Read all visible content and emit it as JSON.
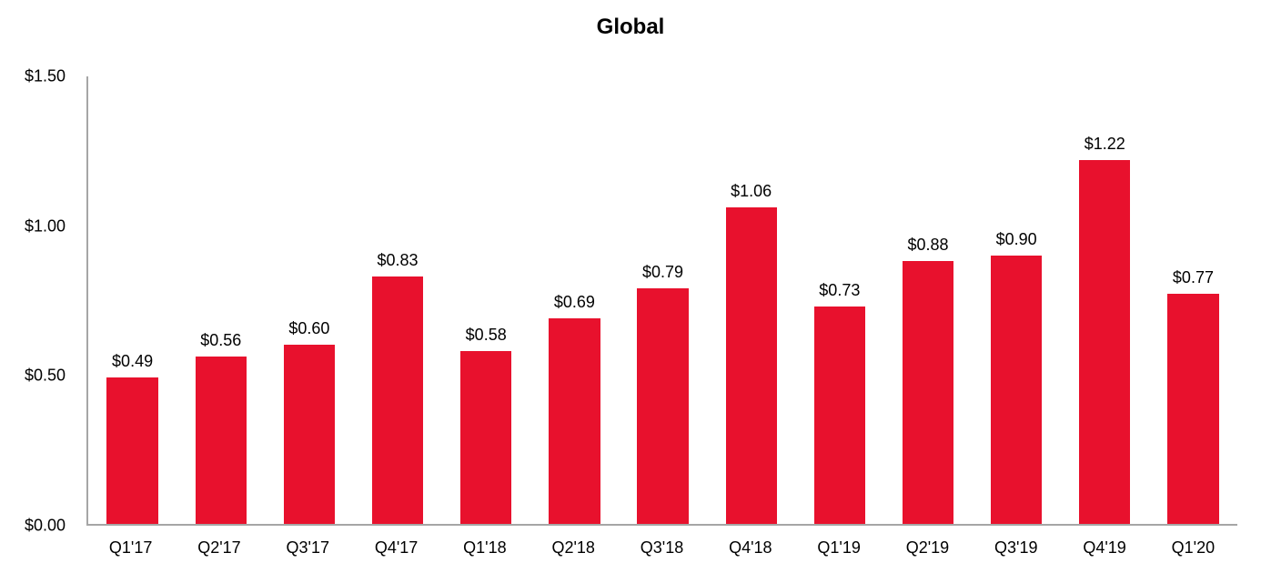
{
  "chart_data": {
    "type": "bar",
    "title": "Global",
    "categories": [
      "Q1'17",
      "Q2'17",
      "Q3'17",
      "Q4'17",
      "Q1'18",
      "Q2'18",
      "Q3'18",
      "Q4'18",
      "Q1'19",
      "Q2'19",
      "Q3'19",
      "Q4'19",
      "Q1'20"
    ],
    "values": [
      0.49,
      0.56,
      0.6,
      0.83,
      0.58,
      0.69,
      0.79,
      1.06,
      0.73,
      0.88,
      0.9,
      1.22,
      0.77
    ],
    "value_labels": [
      "$0.49",
      "$0.56",
      "$0.60",
      "$0.83",
      "$0.58",
      "$0.69",
      "$0.79",
      "$1.06",
      "$0.73",
      "$0.88",
      "$0.90",
      "$1.22",
      "$0.77"
    ],
    "xlabel": "",
    "ylabel": "",
    "ylim": [
      0,
      1.5
    ],
    "ytick_values": [
      0,
      0.5,
      1.0,
      1.5
    ],
    "ytick_labels": [
      "$0.00",
      "$0.50",
      "$1.00",
      "$1.50"
    ],
    "grid": false,
    "legend": "none",
    "bar_color": "#e8112d",
    "axis_color": "#a6a6a6",
    "text_color": "#000000"
  }
}
